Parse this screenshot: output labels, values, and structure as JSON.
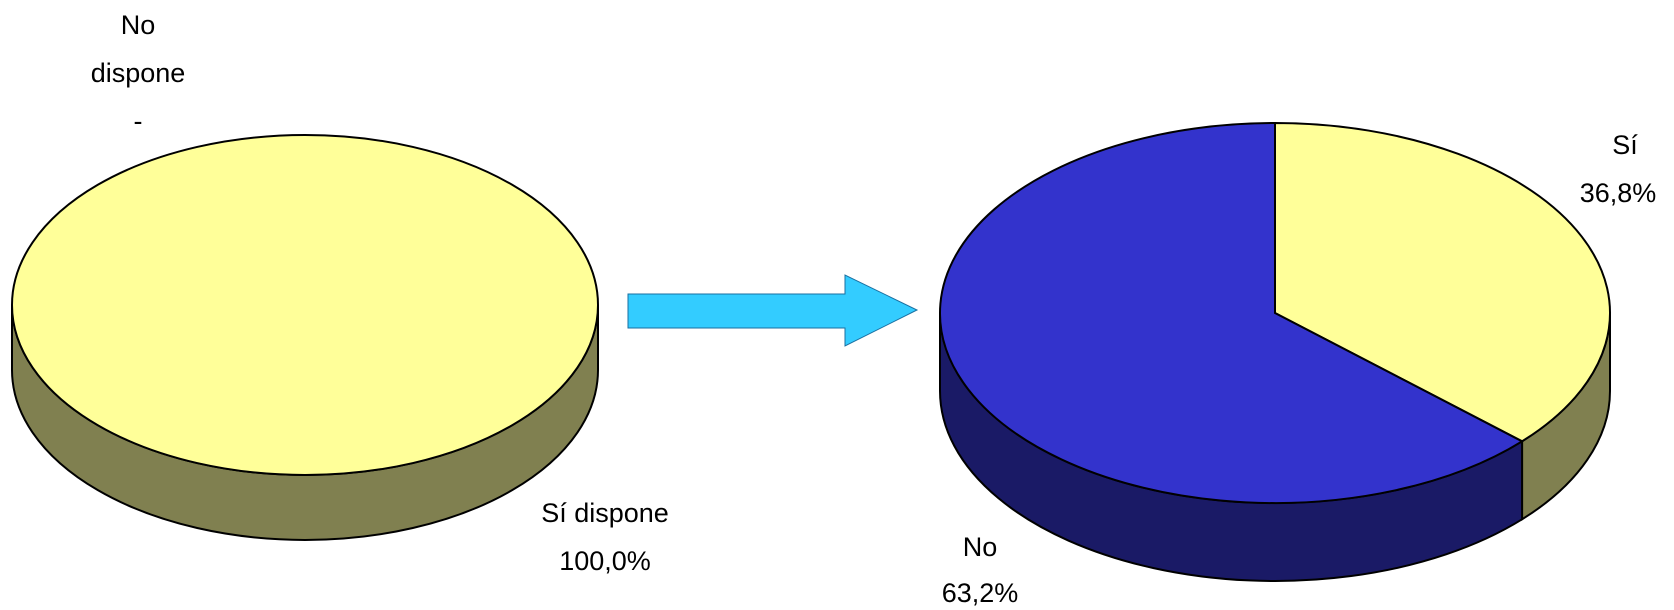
{
  "colors": {
    "yes_top": "#FFFF99",
    "yes_side": "#808050",
    "no_top": "#3333CC",
    "no_side": "#1A1A66",
    "arrow": "#33CCFF",
    "outline": "#000000"
  },
  "chart_data": [
    {
      "type": "pie",
      "title": "",
      "slices": [
        {
          "name": "No dispone",
          "value": 0.0,
          "display_value": "-",
          "color": "#FFFF99"
        },
        {
          "name": "Sí dispone",
          "value": 100.0,
          "display_value": "100,0%",
          "color": "#FFFF99"
        }
      ]
    },
    {
      "type": "pie",
      "title": "",
      "slices": [
        {
          "name": "Sí",
          "value": 36.8,
          "display_value": "36,8%",
          "color": "#FFFF99"
        },
        {
          "name": "No",
          "value": 63.2,
          "display_value": "63,2%",
          "color": "#3333CC"
        }
      ]
    }
  ],
  "labels": {
    "left_no_name_1": "No",
    "left_no_name_2": "dispone",
    "left_no_value": "-",
    "left_yes_name": "Sí dispone",
    "left_yes_value": "100,0%",
    "right_yes_name": "Sí",
    "right_yes_value": "36,8%",
    "right_no_name": "No",
    "right_no_value": "63,2%"
  }
}
